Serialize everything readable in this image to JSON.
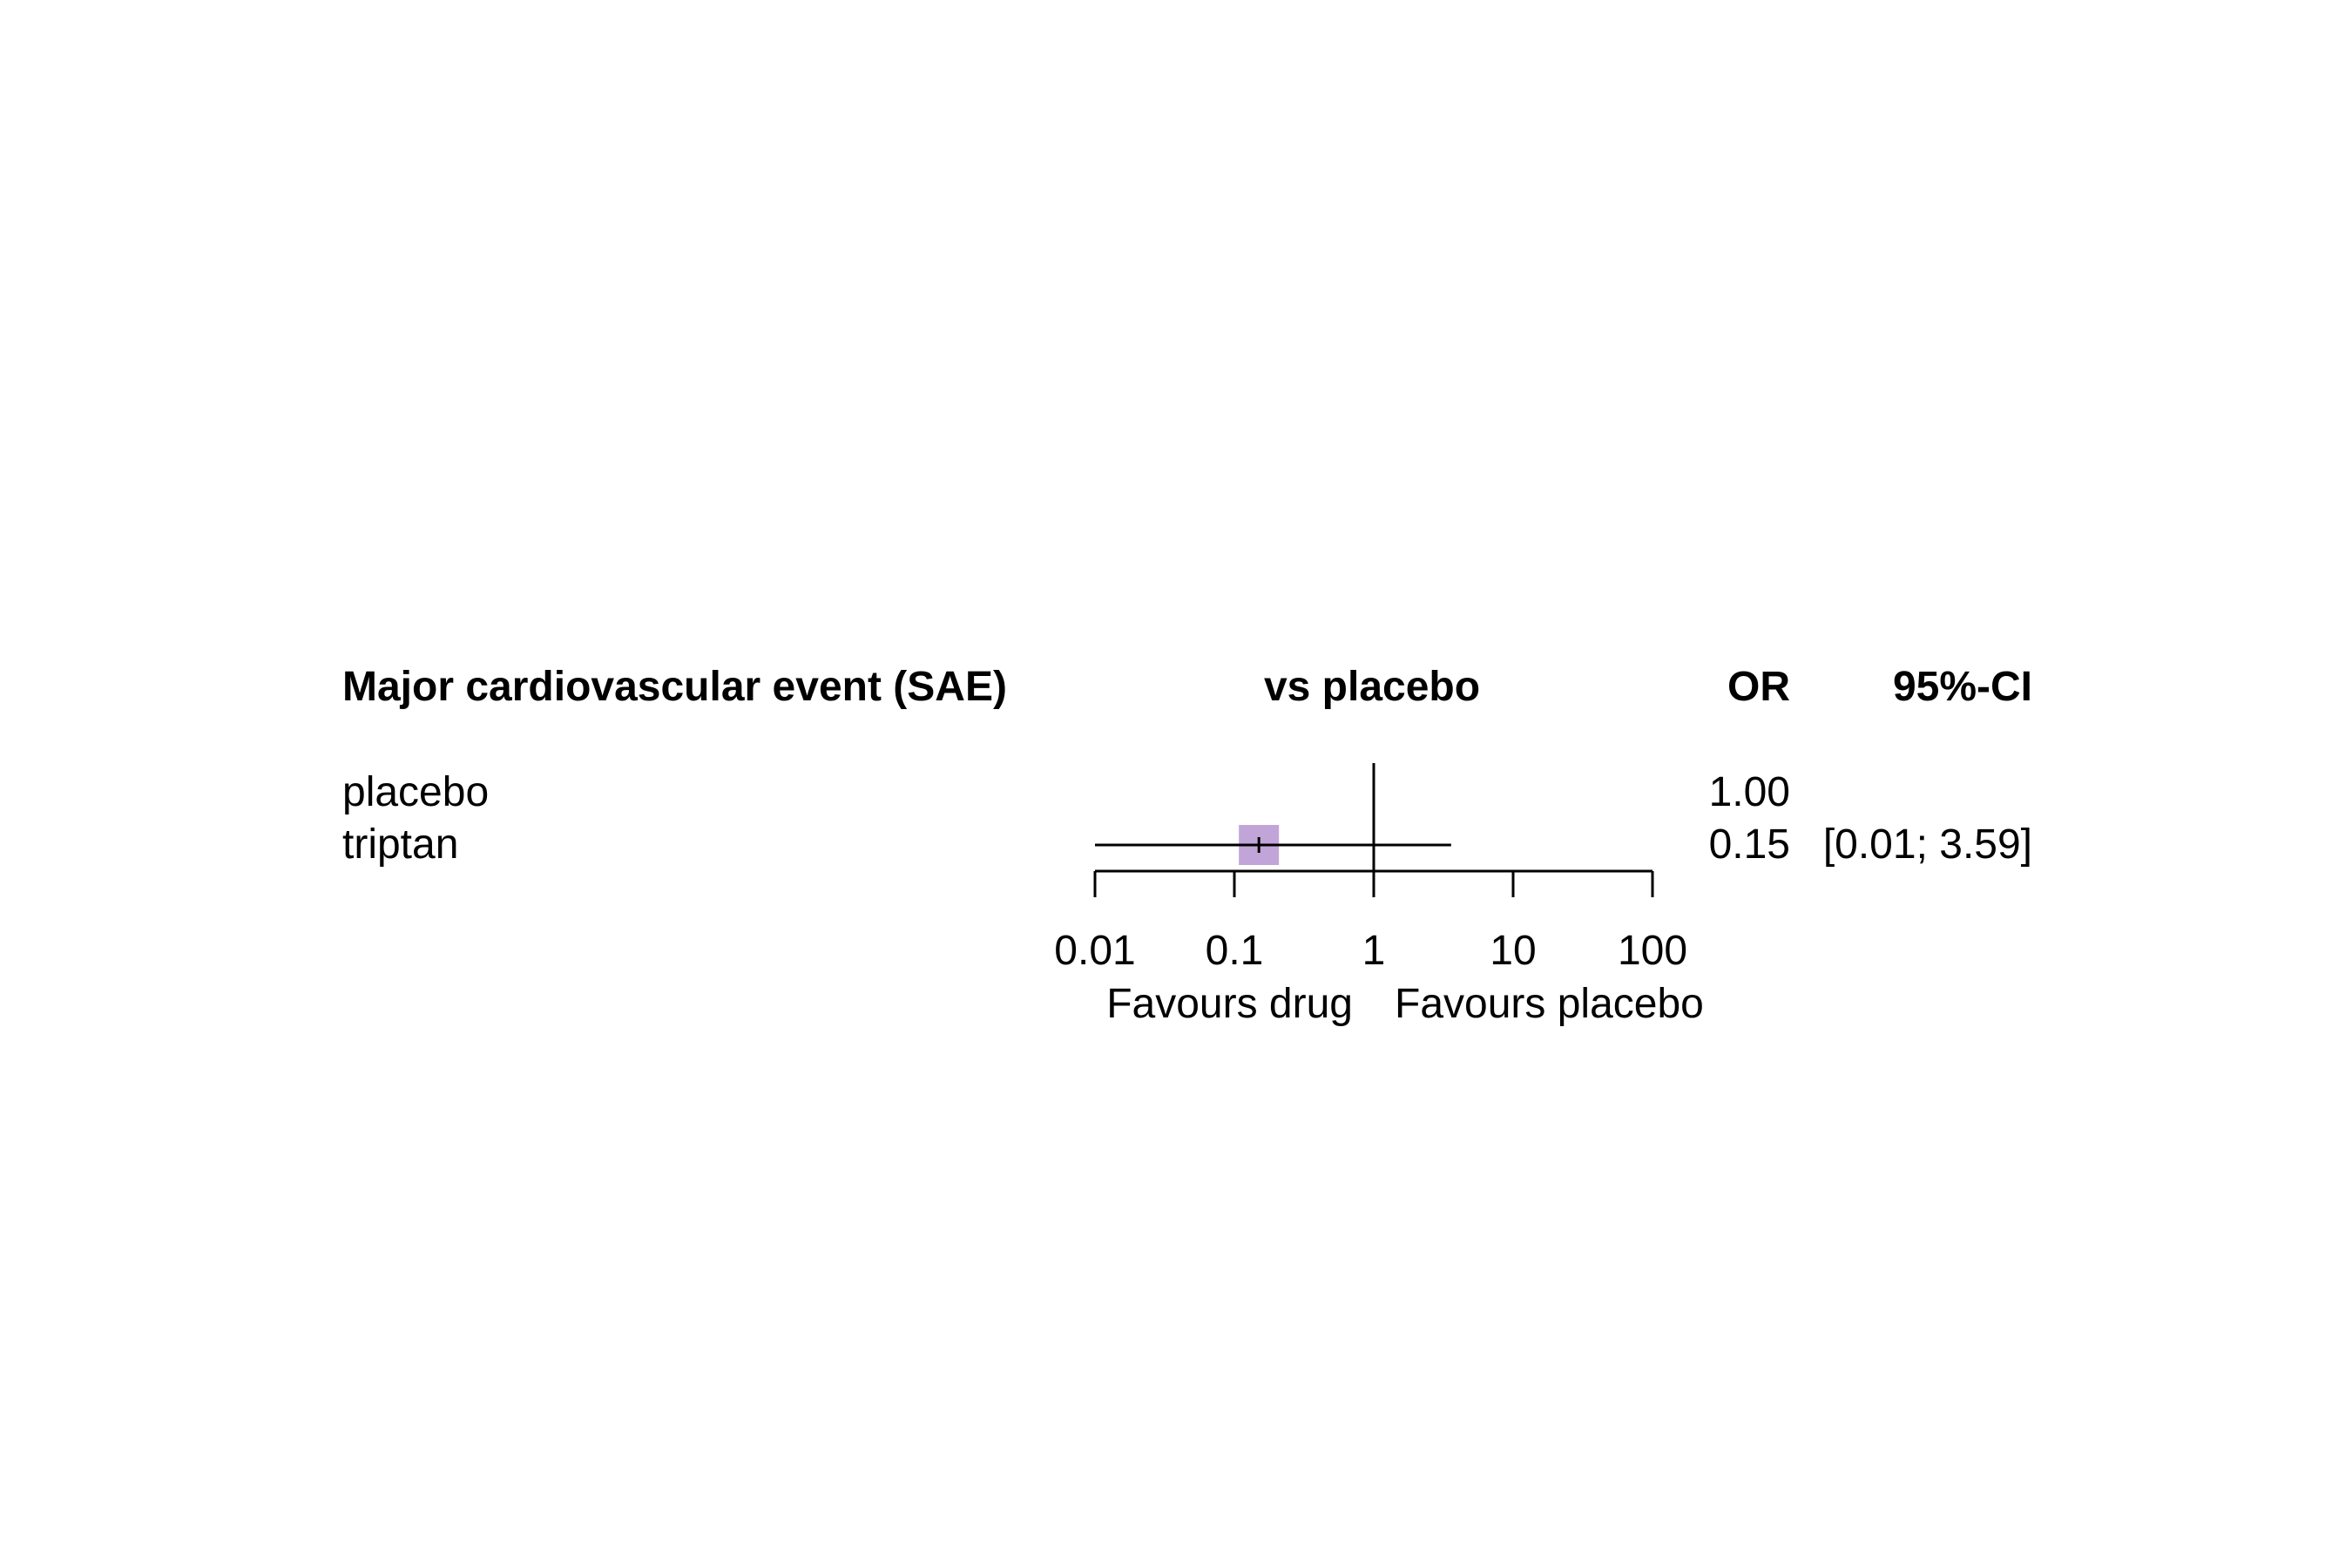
{
  "chart_data": {
    "type": "forest",
    "headers": {
      "label": "Major cardiovascular event (SAE)",
      "comparison": "vs placebo",
      "estimate": "OR",
      "ci": "95%-CI"
    },
    "rows": [
      {
        "label": "placebo",
        "or": 1.0,
        "or_text": "1.00",
        "ci_text": "",
        "reference": true
      },
      {
        "label": "triptan",
        "or": 0.15,
        "lower": 0.01,
        "upper": 3.59,
        "or_text": "0.15",
        "ci_text": "[0.01; 3.59]",
        "reference": false
      }
    ],
    "x_axis": {
      "scale": "log",
      "ticks": [
        0.01,
        0.1,
        1,
        10,
        100
      ],
      "tick_labels": [
        "0.01",
        "0.1",
        "1",
        "10",
        "100"
      ],
      "reference_value": 1
    },
    "xlabel_left": "Favours drug",
    "xlabel_right": "Favours placebo",
    "marker_color": "#c2a5d8",
    "line_color": "#000000"
  }
}
